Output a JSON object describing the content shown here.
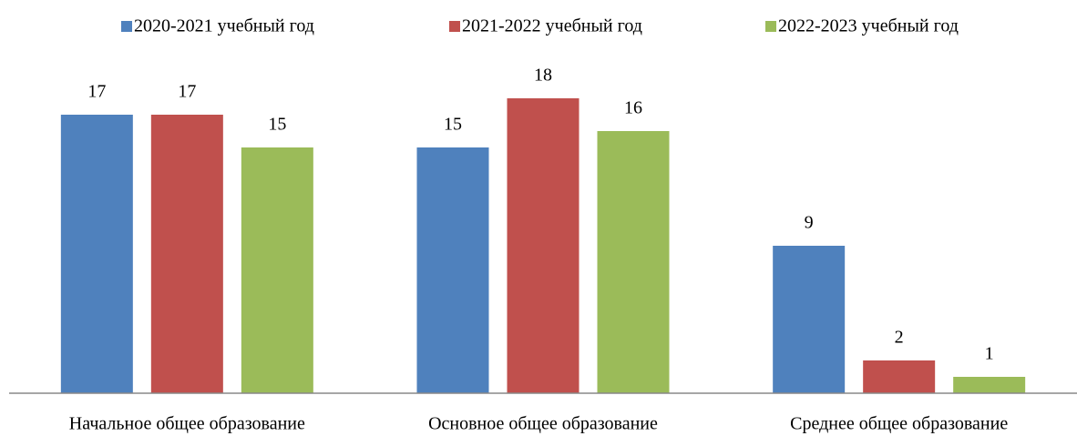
{
  "chart_data": {
    "type": "bar",
    "categories": [
      "Начальное общее образование",
      "Основное общее образование",
      "Среднее общее образование"
    ],
    "series": [
      {
        "name": "2020-2021 учебный год",
        "color": "#4f81bd",
        "values": [
          17,
          15,
          9
        ]
      },
      {
        "name": "2021-2022 учебный год",
        "color": "#c0504d",
        "values": [
          17,
          18,
          2
        ]
      },
      {
        "name": "2022-2023 учебный год",
        "color": "#9bbb59",
        "values": [
          15,
          16,
          1
        ]
      }
    ],
    "legend": "top"
  }
}
